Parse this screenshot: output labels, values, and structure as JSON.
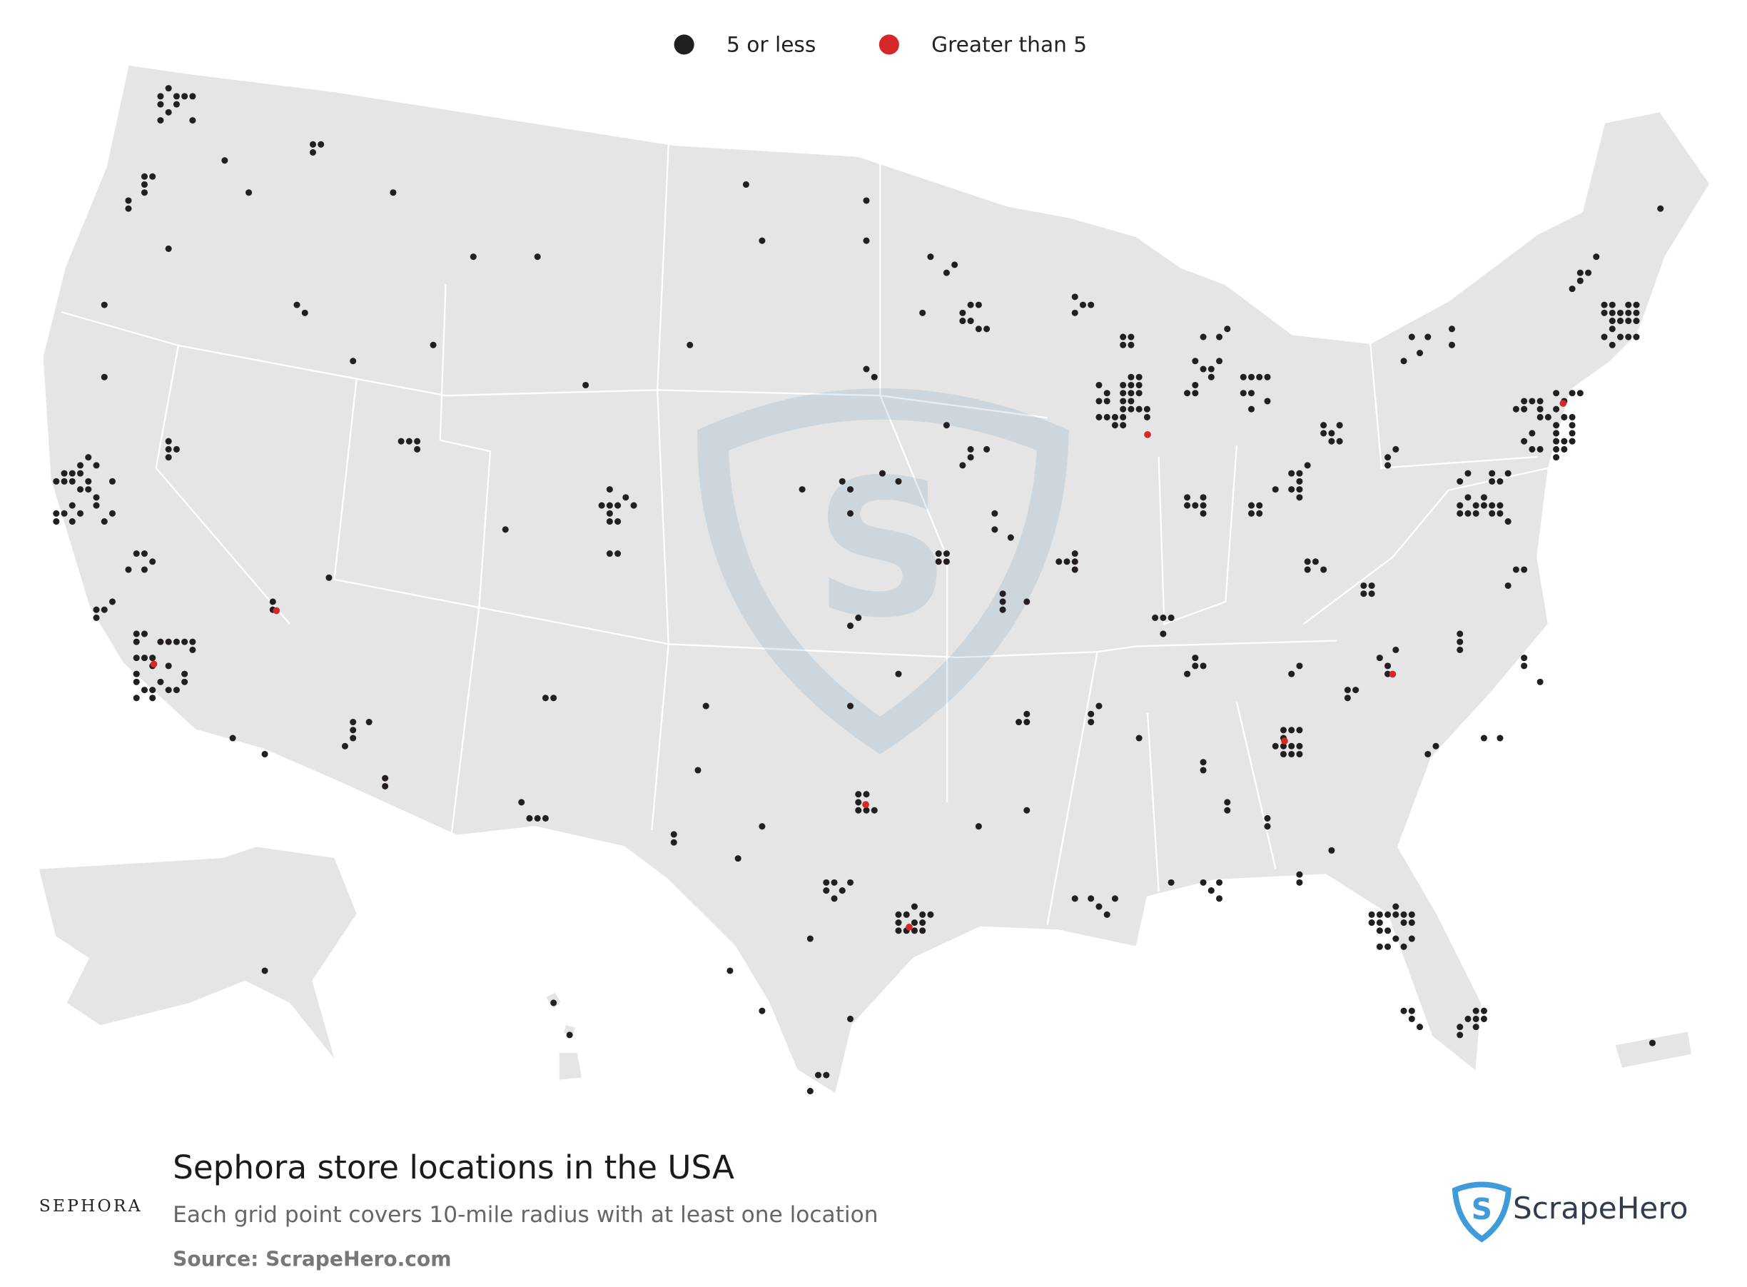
{
  "legend": {
    "items": [
      {
        "label": "5 or less",
        "color": "#231f20"
      },
      {
        "label": "Greater than 5",
        "color": "#d62828"
      }
    ]
  },
  "footer": {
    "brand": "SEPHORA",
    "title": "Sephora store locations in the USA",
    "subtitle": "Each grid point covers 10-mile radius with at least one location",
    "source": "Source: ScrapeHero.com",
    "logo": "ScrapeHero"
  }
}
